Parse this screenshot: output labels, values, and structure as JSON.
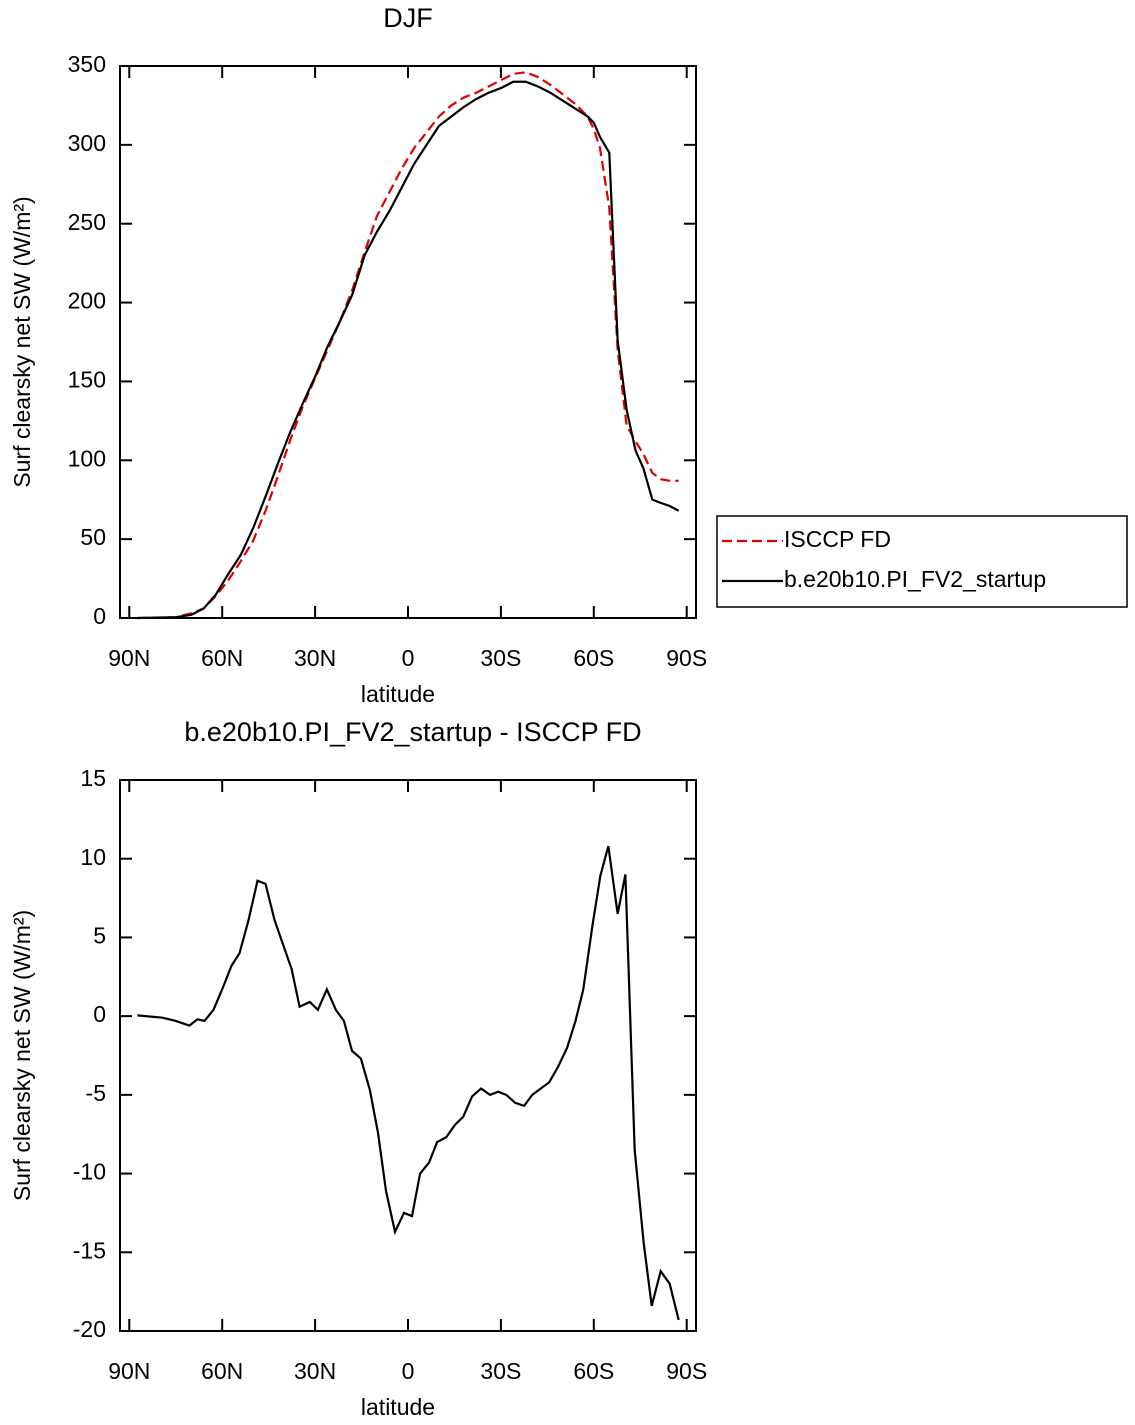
{
  "chart_data": [
    {
      "type": "line",
      "title": "DJF",
      "xlabel": "latitude",
      "ylabel": "Surf clearsky net SW (W/m²)",
      "xlim": [
        93,
        -93
      ],
      "ylim": [
        0,
        350
      ],
      "xticks": [
        {
          "value": 90,
          "label": "90N"
        },
        {
          "value": 60,
          "label": "60N"
        },
        {
          "value": 30,
          "label": "30N"
        },
        0,
        {
          "value": -30,
          "label": "30S"
        },
        {
          "value": -60,
          "label": "60S"
        },
        {
          "value": -90,
          "label": "90S"
        }
      ],
      "yticks": [
        0,
        50,
        100,
        150,
        200,
        250,
        300,
        350
      ],
      "legend": "right",
      "x": [
        87.4,
        75,
        70,
        66,
        62,
        58,
        54,
        50,
        46,
        42,
        38,
        34,
        30,
        26,
        22,
        18,
        14,
        10,
        6,
        2,
        -2,
        -6,
        -10,
        -14,
        -18,
        -22,
        -26,
        -30,
        -34,
        -38,
        -42,
        -46,
        -50,
        -54,
        -58,
        -60,
        -62,
        -65,
        -67.7,
        -70.6,
        -73.5,
        -76,
        -78.9,
        -81.6,
        -84.5,
        -87.4
      ],
      "series": [
        {
          "name": "ISCCP FD",
          "color": "#e00000",
          "dash": true,
          "values": [
            0,
            0.5,
            3,
            6,
            14,
            24,
            36,
            49,
            68,
            90,
            113,
            134,
            152,
            170,
            188,
            208,
            232,
            255,
            270,
            285,
            298,
            308,
            318,
            325,
            330,
            333,
            337,
            341,
            345,
            346,
            343,
            338,
            332,
            326,
            318,
            310,
            298,
            260,
            170,
            122,
            112,
            104,
            92,
            88,
            87,
            87
          ]
        },
        {
          "name": "b.e20b10.PI_FV2_startup",
          "color": "#000000",
          "dash": false,
          "values": [
            0,
            0.5,
            2,
            6,
            15,
            28,
            40,
            57,
            77,
            98,
            118,
            136,
            153,
            172,
            188,
            205,
            230,
            245,
            258,
            273,
            288,
            300,
            312,
            318,
            324,
            329,
            333,
            336,
            340,
            340,
            337,
            333,
            328,
            323,
            318,
            314,
            305,
            295,
            176,
            132,
            106,
            95,
            75,
            73,
            71,
            68
          ]
        }
      ]
    },
    {
      "type": "line",
      "title": "b.e20b10.PI_FV2_startup - ISCCP FD",
      "xlabel": "latitude",
      "ylabel": "Surf clearsky net SW (W/m²)",
      "xlim": [
        93,
        -93
      ],
      "ylim": [
        -20,
        15
      ],
      "xticks": [
        {
          "value": 90,
          "label": "90N"
        },
        {
          "value": 60,
          "label": "60N"
        },
        {
          "value": 30,
          "label": "30N"
        },
        0,
        {
          "value": -30,
          "label": "30S"
        },
        {
          "value": -60,
          "label": "60S"
        },
        {
          "value": -90,
          "label": "90S"
        }
      ],
      "yticks": [
        -20,
        -15,
        -10,
        -5,
        0,
        5,
        10,
        15
      ],
      "x": [
        87.4,
        79.3,
        75.1,
        70.6,
        68,
        65.7,
        62.8,
        59.6,
        57,
        54.4,
        51.5,
        48.6,
        46,
        43.1,
        37.6,
        35,
        31.7,
        29.1,
        26.2,
        23.3,
        20.7,
        18.1,
        15.2,
        12.3,
        9.7,
        7.1,
        4.2,
        1.3,
        -1.3,
        -3.9,
        -6.8,
        -9.4,
        -12.3,
        -15.2,
        -17.8,
        -20.7,
        -23.6,
        -26.5,
        -29.1,
        -31.7,
        -34.6,
        -37.5,
        -40.1,
        -45.6,
        -48.5,
        -51.4,
        -54.1,
        -56.6,
        -59.6,
        -62.1,
        -64.7,
        -67.7,
        -70.2,
        -73.2,
        -76.1,
        -78.7,
        -81.6,
        -84.5,
        -87.4
      ],
      "series": [
        {
          "color": "#000000",
          "dash": false,
          "values": [
            0.05,
            -0.1,
            -0.3,
            -0.6,
            -0.2,
            -0.3,
            0.4,
            1.9,
            3.2,
            4.0,
            6.1,
            8.6,
            8.4,
            6.1,
            3.0,
            0.6,
            0.9,
            0.4,
            1.7,
            0.4,
            -0.3,
            -2.2,
            -2.7,
            -4.7,
            -7.4,
            -11.1,
            -13.7,
            -12.5,
            -12.7,
            -10.0,
            -9.3,
            -8.0,
            -7.7,
            -6.9,
            -6.4,
            -5.1,
            -4.6,
            -5.0,
            -4.8,
            -5.0,
            -5.5,
            -5.7,
            -5.0,
            -4.2,
            -3.2,
            -2.0,
            -0.3,
            1.7,
            5.8,
            8.9,
            10.8,
            6.5,
            9.0,
            -8.5,
            -14.4,
            -18.4,
            -16.2,
            -17.0,
            -19.3
          ]
        }
      ]
    }
  ]
}
